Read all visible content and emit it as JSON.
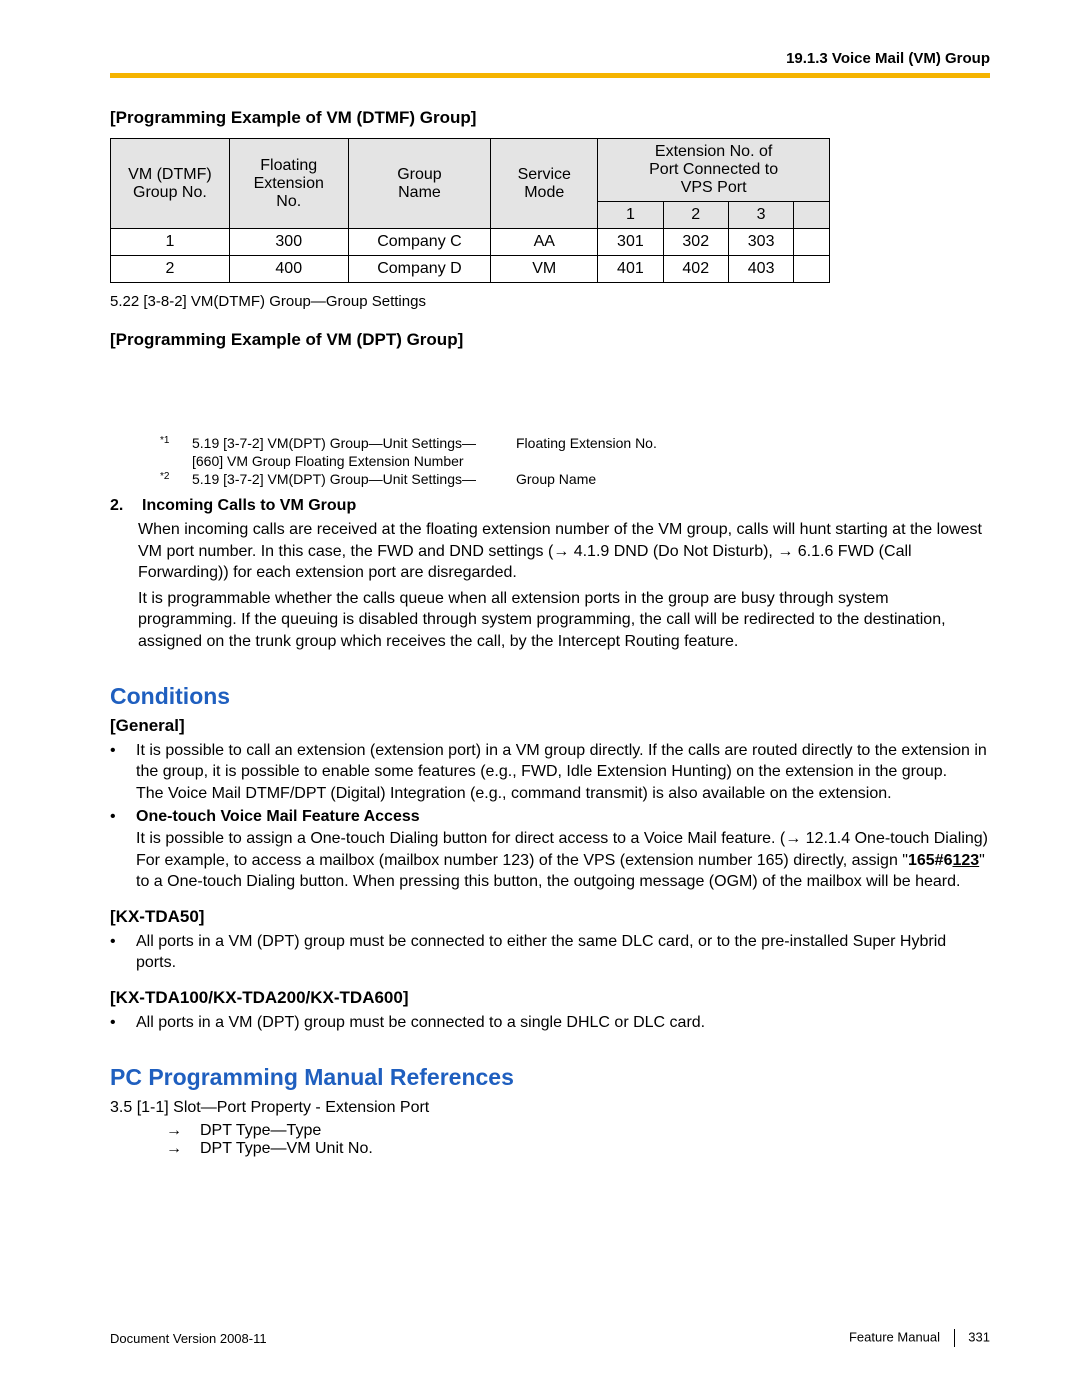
{
  "header": {
    "section_ref": "19.1.3 Voice Mail (VM) Group",
    "rule_color": "#f5b400"
  },
  "ex1": {
    "title": "[Programming Example of VM (DTMF) Group]",
    "columns": {
      "c1": "VM (DTMF)\nGroup No.",
      "c2": "Floating\nExtension\nNo.",
      "c3": "Group\nName",
      "c4": "Service\nMode",
      "c5_top": "Extension No. of\nPort Connected to\nVPS Port",
      "c5_sub": [
        "1",
        "2",
        "3"
      ]
    },
    "rows": [
      {
        "no": "1",
        "ext": "300",
        "name": "Company C",
        "mode": "AA",
        "e": [
          "301",
          "302",
          "303"
        ]
      },
      {
        "no": "2",
        "ext": "400",
        "name": "Company D",
        "mode": "VM",
        "e": [
          "401",
          "402",
          "403"
        ]
      }
    ],
    "caption": "5.22  [3-8-2] VM(DTMF) Group—Group Settings"
  },
  "ex2": {
    "title": "[Programming Example of VM (DPT) Group]",
    "footnotes": [
      {
        "mark": "*1",
        "left": "5.19  [3-7-2] VM(DPT) Group—Unit Settings—",
        "right": "Floating Extension No."
      },
      {
        "mark": "",
        "left": "[660] VM Group Floating Extension Number",
        "right": ""
      },
      {
        "mark": "*2",
        "left": "5.19  [3-7-2] VM(DPT) Group—Unit Settings—",
        "right": "Group Name"
      }
    ]
  },
  "item2": {
    "num": "2.",
    "title": "Incoming Calls to VM Group",
    "para1_a": "When incoming calls are received at the floating extension number of the VM group, calls will hunt starting at the lowest VM port number. In this case, the FWD and DND settings (",
    "para1_b": " 4.1.9  DND (Do Not Disturb), ",
    "para1_c": " 6.1.6  FWD (Call Forwarding)) for each extension port are disregarded.",
    "para2": "It is programmable whether the calls queue when all extension ports in the group are busy through system programming. If the queuing is disabled through system programming, the call will be redirected to the destination, assigned on the trunk group which receives the call, by the Intercept Routing feature."
  },
  "conditions": {
    "heading": "Conditions",
    "general_label": "[General]",
    "b1_a": "It is possible to call an extension (extension port) in a VM group directly. If the calls are routed directly to the extension in the group, it is possible to enable some features (e.g., FWD, Idle Extension Hunting) on the extension in the group.",
    "b1_b": "The Voice Mail DTMF/DPT (Digital) Integration (e.g., command transmit) is also available on the extension.",
    "b2_title": "One-touch Voice Mail Feature Access",
    "b2_a_pre": "It is possible to assign a One-touch Dialing button for direct access to a Voice Mail feature. (",
    "b2_a_post1": " 12.1.4  One-touch Dialing) For example, to access a mailbox (mailbox number 123) of the VPS (extension number 165) directly, assign \"",
    "b2_code_a": "165#6",
    "b2_code_b": "123",
    "b2_a_post2": "\" to a One-touch Dialing button. When pressing this button, the outgoing message (OGM) of the mailbox will be heard.",
    "kx50_label": "[KX-TDA50]",
    "kx50_b": "All ports in a VM (DPT) group must be connected to either the same DLC card, or to the pre-installed Super Hybrid ports.",
    "kx100_label": "[KX-TDA100/KX-TDA200/KX-TDA600]",
    "kx100_b": "All ports in a VM (DPT) group must be connected to a single DHLC or DLC card."
  },
  "pcrefs": {
    "heading": "PC Programming Manual References",
    "line1": "3.5  [1-1] Slot—Port Property - Extension Port",
    "sub1_arrow": "→",
    "sub1": "DPT Type—Type",
    "sub2_arrow": "→",
    "sub2": "DPT Type—VM Unit No."
  },
  "footer": {
    "left": "Document Version  2008-11",
    "right_a": "Feature Manual",
    "right_b": "331"
  },
  "glyphs": {
    "arrow": "→",
    "bullet": "•"
  }
}
